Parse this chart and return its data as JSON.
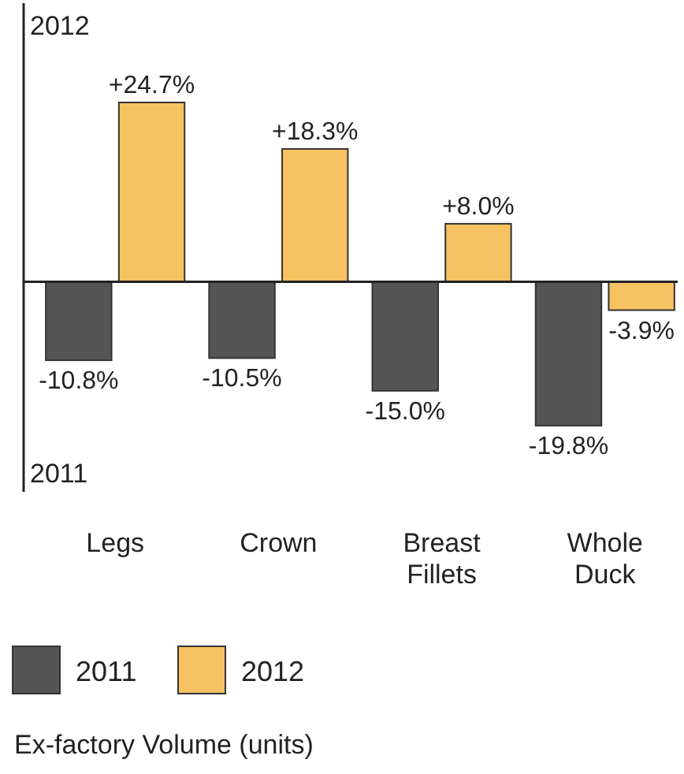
{
  "chart_data": {
    "type": "bar",
    "categories": [
      "Legs",
      "Crown",
      "Breast Fillets",
      "Whole Duck"
    ],
    "series": [
      {
        "name": "2011",
        "color": "#555555",
        "values": [
          -10.8,
          -10.5,
          -15.0,
          -19.8
        ],
        "value_labels": [
          "-10.8%",
          "-10.5%",
          "-15.0%",
          "-19.8%"
        ]
      },
      {
        "name": "2012",
        "color": "#f6c262",
        "values": [
          24.7,
          18.3,
          8.0,
          -3.9
        ],
        "value_labels": [
          "+24.7%",
          "+18.3%",
          "+8.0%",
          "-3.9%"
        ]
      }
    ],
    "legend": "bottom",
    "annotations": [
      "2012",
      "2011",
      "Ex-factory Volume (units)"
    ]
  }
}
